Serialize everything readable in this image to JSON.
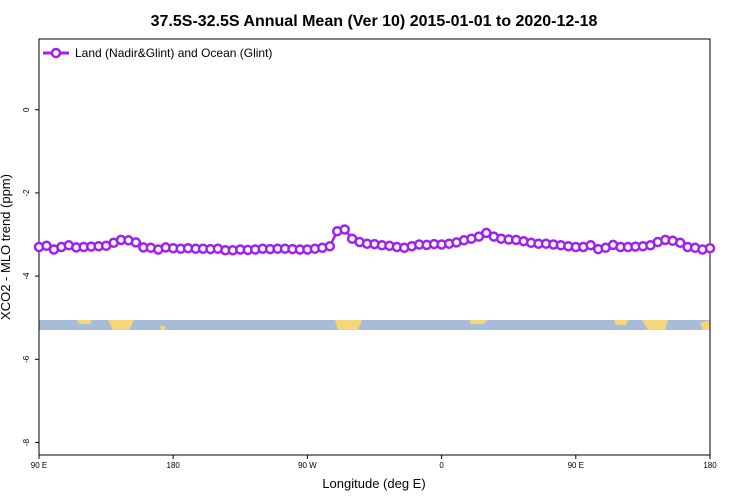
{
  "chart_data": {
    "type": "line",
    "title": "37.5S-32.5S Annual Mean (Ver 10)   2015-01-01 to 2020-12-18",
    "xlabel": "Longitude (deg E)",
    "ylabel": "XCO2 - MLO trend (ppm)",
    "xlim": [
      90,
      540
    ],
    "ylim": [
      -8.3,
      1.7
    ],
    "x_ticks": [
      {
        "value": 90,
        "label": "90 E"
      },
      {
        "value": 180,
        "label": "180"
      },
      {
        "value": 270,
        "label": "90 W"
      },
      {
        "value": 360,
        "label": "0"
      },
      {
        "value": 450,
        "label": "90 E"
      },
      {
        "value": 540,
        "label": "180"
      }
    ],
    "y_ticks": [
      {
        "value": 0,
        "label": "0"
      },
      {
        "value": -2,
        "label": "-2"
      },
      {
        "value": -4,
        "label": "-4"
      },
      {
        "value": -6,
        "label": "-6"
      },
      {
        "value": -8,
        "label": "-8"
      }
    ],
    "grid": false,
    "legend_position": "top-left",
    "series": [
      {
        "name": "Land (Nadir&Glint) and Ocean (Glint)",
        "color": "#a020f0",
        "x": [
          90,
          95,
          100,
          105,
          110,
          115,
          120,
          125,
          130,
          135,
          140,
          145,
          150,
          155,
          160,
          165,
          170,
          175,
          180,
          185,
          190,
          195,
          200,
          205,
          210,
          215,
          220,
          225,
          230,
          235,
          240,
          245,
          250,
          255,
          260,
          265,
          270,
          275,
          280,
          285,
          290,
          295,
          300,
          305,
          310,
          315,
          320,
          325,
          330,
          335,
          340,
          345,
          350,
          355,
          360,
          365,
          370,
          375,
          380,
          385,
          390,
          395,
          400,
          405,
          410,
          415,
          420,
          425,
          430,
          435,
          440,
          445,
          450,
          455,
          460,
          465,
          470,
          475,
          480,
          485,
          490,
          495,
          500,
          505,
          510,
          515,
          520,
          525,
          530,
          535,
          540
        ],
        "values": [
          -3.3,
          -3.27,
          -3.36,
          -3.3,
          -3.26,
          -3.31,
          -3.3,
          -3.29,
          -3.28,
          -3.27,
          -3.2,
          -3.13,
          -3.14,
          -3.19,
          -3.31,
          -3.32,
          -3.36,
          -3.31,
          -3.33,
          -3.34,
          -3.33,
          -3.34,
          -3.34,
          -3.35,
          -3.34,
          -3.38,
          -3.38,
          -3.36,
          -3.37,
          -3.36,
          -3.34,
          -3.35,
          -3.34,
          -3.34,
          -3.35,
          -3.36,
          -3.36,
          -3.34,
          -3.32,
          -3.28,
          -2.92,
          -2.88,
          -3.1,
          -3.18,
          -3.22,
          -3.23,
          -3.26,
          -3.27,
          -3.3,
          -3.32,
          -3.28,
          -3.24,
          -3.25,
          -3.23,
          -3.24,
          -3.22,
          -3.19,
          -3.14,
          -3.1,
          -3.05,
          -2.96,
          -3.05,
          -3.1,
          -3.12,
          -3.13,
          -3.16,
          -3.2,
          -3.22,
          -3.22,
          -3.24,
          -3.26,
          -3.28,
          -3.3,
          -3.3,
          -3.26,
          -3.35,
          -3.32,
          -3.25,
          -3.3,
          -3.3,
          -3.29,
          -3.28,
          -3.26,
          -3.18,
          -3.13,
          -3.15,
          -3.2,
          -3.3,
          -3.32,
          -3.36,
          -3.33
        ]
      }
    ]
  }
}
